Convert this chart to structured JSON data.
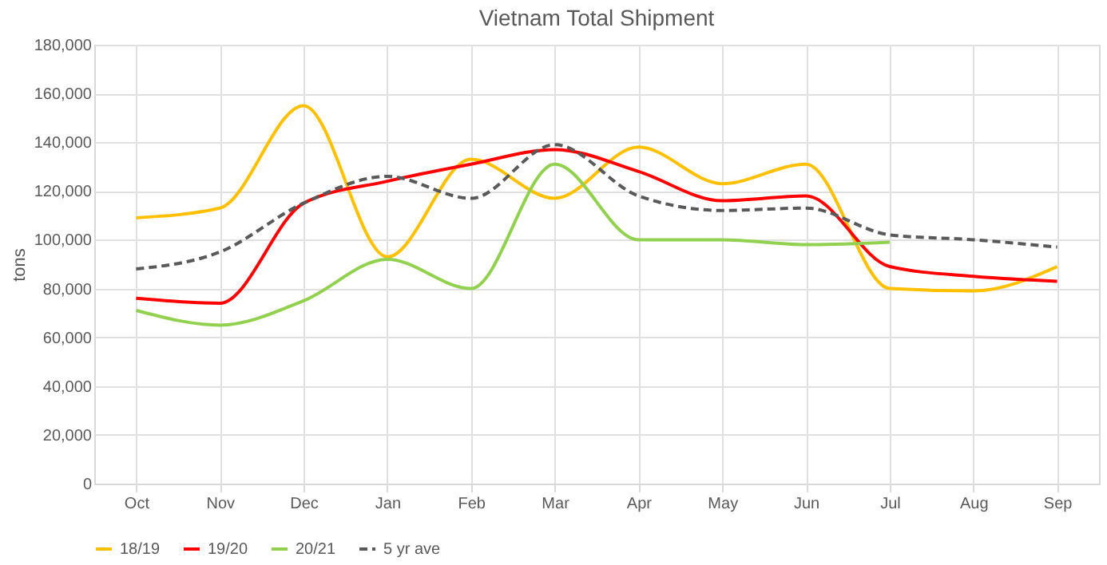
{
  "chart_data": {
    "type": "line",
    "title": "Vietnam Total Shipment",
    "ylabel": "tons",
    "categories": [
      "Oct",
      "Nov",
      "Dec",
      "Jan",
      "Feb",
      "Mar",
      "Apr",
      "May",
      "Jun",
      "Jul",
      "Aug",
      "Sep"
    ],
    "series": [
      {
        "name": "18/19",
        "color": "#ffc000",
        "values": [
          109000,
          113000,
          155000,
          93000,
          133000,
          117000,
          138000,
          123000,
          131000,
          80000,
          79000,
          89000
        ]
      },
      {
        "name": "19/20",
        "color": "#ff0000",
        "values": [
          76000,
          74000,
          115000,
          124000,
          131000,
          137000,
          128000,
          116000,
          118000,
          89000,
          85000,
          83000
        ]
      },
      {
        "name": "20/21",
        "color": "#92d050",
        "values": [
          71000,
          65000,
          75000,
          92000,
          80000,
          131000,
          100000,
          100000,
          98000,
          99000,
          null,
          null
        ]
      },
      {
        "name": "5 yr ave",
        "color": "#595959",
        "line_style": "dashed",
        "values": [
          88000,
          95000,
          115000,
          126000,
          117000,
          139000,
          118000,
          112000,
          113000,
          102000,
          100000,
          97000
        ]
      }
    ],
    "ylim": [
      0,
      180000
    ],
    "yticks": [
      0,
      {
        "value": 20000,
        "label": "20,000"
      },
      {
        "value": 40000,
        "label": "40,000"
      },
      {
        "value": 60000,
        "label": "60,000"
      },
      {
        "value": 80000,
        "label": "80,000"
      },
      {
        "value": 100000,
        "label": "100,000"
      },
      {
        "value": 120000,
        "label": "120,000"
      },
      {
        "value": 140000,
        "label": "140,000"
      },
      {
        "value": 160000,
        "label": "160,000"
      },
      {
        "value": 180000,
        "label": "180,000"
      }
    ],
    "grid": true,
    "legend": "bottom",
    "marker": "none"
  }
}
